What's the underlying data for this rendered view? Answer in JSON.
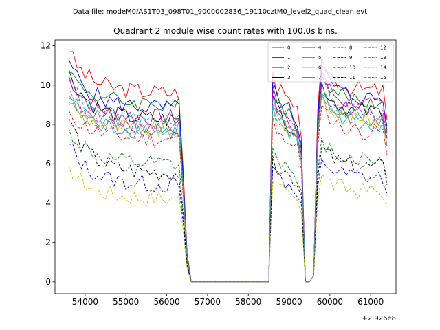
{
  "chart_data": {
    "type": "line",
    "suptitle": "Data file: modeM0/AS1T03_098T01_9000002836_19110cztM0_level2_quad_clean.evt",
    "title": "Quadrant 2 module wise count rates with 100.0s bins.",
    "xlabel": "",
    "ylabel": "",
    "offset_text": "+2.926e8",
    "xlim": [
      53260,
      61620
    ],
    "ylim": [
      -0.6,
      12.3
    ],
    "xticks": [
      54000,
      55000,
      56000,
      57000,
      58000,
      59000,
      60000,
      61000
    ],
    "xtick_labels": [
      "54000",
      "55000",
      "56000",
      "57000",
      "58000",
      "59000",
      "60000",
      "61000"
    ],
    "yticks": [
      0,
      2,
      4,
      6,
      8,
      10,
      12
    ],
    "ytick_labels": [
      "0",
      "2",
      "4",
      "6",
      "8",
      "10",
      "12"
    ],
    "legend_position": "upper right",
    "legend_ncol": 4,
    "x_start": 53600,
    "bin": 100,
    "gap_start": 56600,
    "gap_end": 58500,
    "second_dip": [
      59400,
      59600
    ],
    "series": [
      {
        "name": "0",
        "color": "#ff0000",
        "dash": "solid",
        "level": 9.8,
        "start": 11.7,
        "post": 9.7
      },
      {
        "name": "1",
        "color": "#008000",
        "dash": "solid",
        "level": 9.2,
        "start": 10.7,
        "post": 9.1
      },
      {
        "name": "2",
        "color": "#0000ff",
        "dash": "solid",
        "level": 9.0,
        "start": 11.3,
        "post": 9.3
      },
      {
        "name": "3",
        "color": "#000000",
        "dash": "solid",
        "level": 8.4,
        "start": 10.8,
        "post": 8.6
      },
      {
        "name": "4",
        "color": "#bf00bf",
        "dash": "solid",
        "level": 8.5,
        "start": 10.5,
        "post": 8.9
      },
      {
        "name": "5",
        "color": "#00bfbf",
        "dash": "solid",
        "level": 7.8,
        "start": 9.3,
        "post": 8.1
      },
      {
        "name": "6",
        "color": "#bfbf00",
        "dash": "solid",
        "level": 7.9,
        "start": 9.1,
        "post": 8.2
      },
      {
        "name": "7",
        "color": "#808080",
        "dash": "solid",
        "level": 8.0,
        "start": 9.5,
        "post": 8.1
      },
      {
        "name": "8",
        "color": "#ff0000",
        "dash": "dashed",
        "level": 7.4,
        "start": 8.7,
        "post": 7.6
      },
      {
        "name": "9",
        "color": "#008000",
        "dash": "dashed",
        "level": 6.1,
        "start": 7.8,
        "post": 6.2
      },
      {
        "name": "10",
        "color": "#0000ff",
        "dash": "dashed",
        "level": 5.1,
        "start": 7.0,
        "post": 5.3
      },
      {
        "name": "11",
        "color": "#000000",
        "dash": "dashed",
        "level": 5.7,
        "start": 8.3,
        "post": 5.8
      },
      {
        "name": "12",
        "color": "#bf00bf",
        "dash": "dashed",
        "level": 8.1,
        "start": 10.3,
        "post": 8.6
      },
      {
        "name": "13",
        "color": "#00bfbf",
        "dash": "dashed",
        "level": 8.3,
        "start": 9.9,
        "post": 8.5
      },
      {
        "name": "14",
        "color": "#bfbf00",
        "dash": "dashed",
        "level": 4.4,
        "start": 5.9,
        "post": 4.6
      },
      {
        "name": "15",
        "color": "#808080",
        "dash": "dashed",
        "level": 7.8,
        "start": 9.0,
        "post": 8.1
      }
    ]
  }
}
